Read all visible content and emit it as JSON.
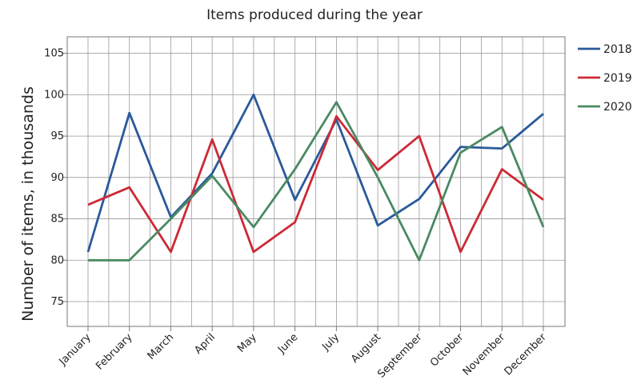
{
  "chart_data": {
    "type": "line",
    "title": "Items produced during the year",
    "xlabel": "",
    "ylabel": "Number of items, in thousands",
    "categories": [
      "January",
      "February",
      "March",
      "April",
      "May",
      "June",
      "July",
      "August",
      "September",
      "October",
      "November",
      "December"
    ],
    "ylim": [
      72,
      107
    ],
    "yticks": [
      75,
      80,
      85,
      90,
      95,
      100,
      105
    ],
    "grid": true,
    "legend_position": "right",
    "series": [
      {
        "name": "2018",
        "color": "#2a5a9a",
        "values": [
          81,
          97.8,
          85.2,
          90.5,
          100,
          87.3,
          97,
          84.2,
          87.4,
          93.7,
          93.5,
          97.7
        ]
      },
      {
        "name": "2019",
        "color": "#cc2a36",
        "values": [
          86.7,
          88.8,
          81,
          94.6,
          81,
          84.6,
          97.4,
          90.9,
          95,
          81,
          91,
          87.3
        ]
      },
      {
        "name": "2020",
        "color": "#4a8a62",
        "values": [
          80,
          80,
          85,
          90.2,
          84,
          91,
          99.1,
          90,
          80,
          93,
          96.1,
          84
        ]
      }
    ]
  }
}
